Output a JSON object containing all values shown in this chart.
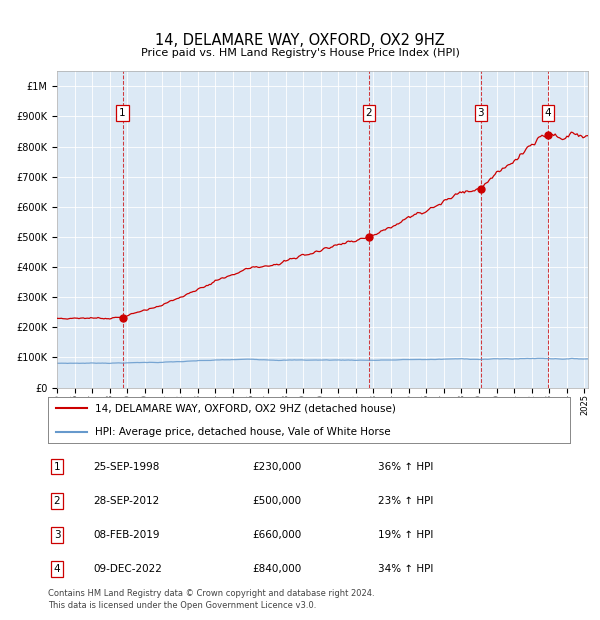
{
  "title": "14, DELAMARE WAY, OXFORD, OX2 9HZ",
  "subtitle": "Price paid vs. HM Land Registry's House Price Index (HPI)",
  "background_color": "#dce9f5",
  "hpi_color": "#6699cc",
  "price_color": "#cc0000",
  "dashed_line_color": "#cc0000",
  "ylim": [
    0,
    1050000
  ],
  "yticks": [
    0,
    100000,
    200000,
    300000,
    400000,
    500000,
    600000,
    700000,
    800000,
    900000,
    1000000
  ],
  "ytick_labels": [
    "£0",
    "£100K",
    "£200K",
    "£300K",
    "£400K",
    "£500K",
    "£600K",
    "£700K",
    "£800K",
    "£900K",
    "£1M"
  ],
  "xmin": 1995,
  "xmax": 2025.2,
  "sales": [
    {
      "num": 1,
      "date_label": "25-SEP-1998",
      "date_x": 1998.73,
      "price": 230000,
      "pct": "36%",
      "dir": "↑"
    },
    {
      "num": 2,
      "date_label": "28-SEP-2012",
      "date_x": 2012.74,
      "price": 500000,
      "pct": "23%",
      "dir": "↑"
    },
    {
      "num": 3,
      "date_label": "08-FEB-2019",
      "date_x": 2019.1,
      "price": 660000,
      "pct": "19%",
      "dir": "↑"
    },
    {
      "num": 4,
      "date_label": "09-DEC-2022",
      "date_x": 2022.93,
      "price": 840000,
      "pct": "34%",
      "dir": "↑"
    }
  ],
  "legend_line1": "14, DELAMARE WAY, OXFORD, OX2 9HZ (detached house)",
  "legend_line2": "HPI: Average price, detached house, Vale of White Horse",
  "table_rows": [
    [
      "1",
      "25-SEP-1998",
      "£230,000",
      "36% ↑ HPI"
    ],
    [
      "2",
      "28-SEP-2012",
      "£500,000",
      "23% ↑ HPI"
    ],
    [
      "3",
      "08-FEB-2019",
      "£660,000",
      "19% ↑ HPI"
    ],
    [
      "4",
      "09-DEC-2022",
      "£840,000",
      "34% ↑ HPI"
    ]
  ],
  "footnote": "Contains HM Land Registry data © Crown copyright and database right 2024.\nThis data is licensed under the Open Government Licence v3.0."
}
